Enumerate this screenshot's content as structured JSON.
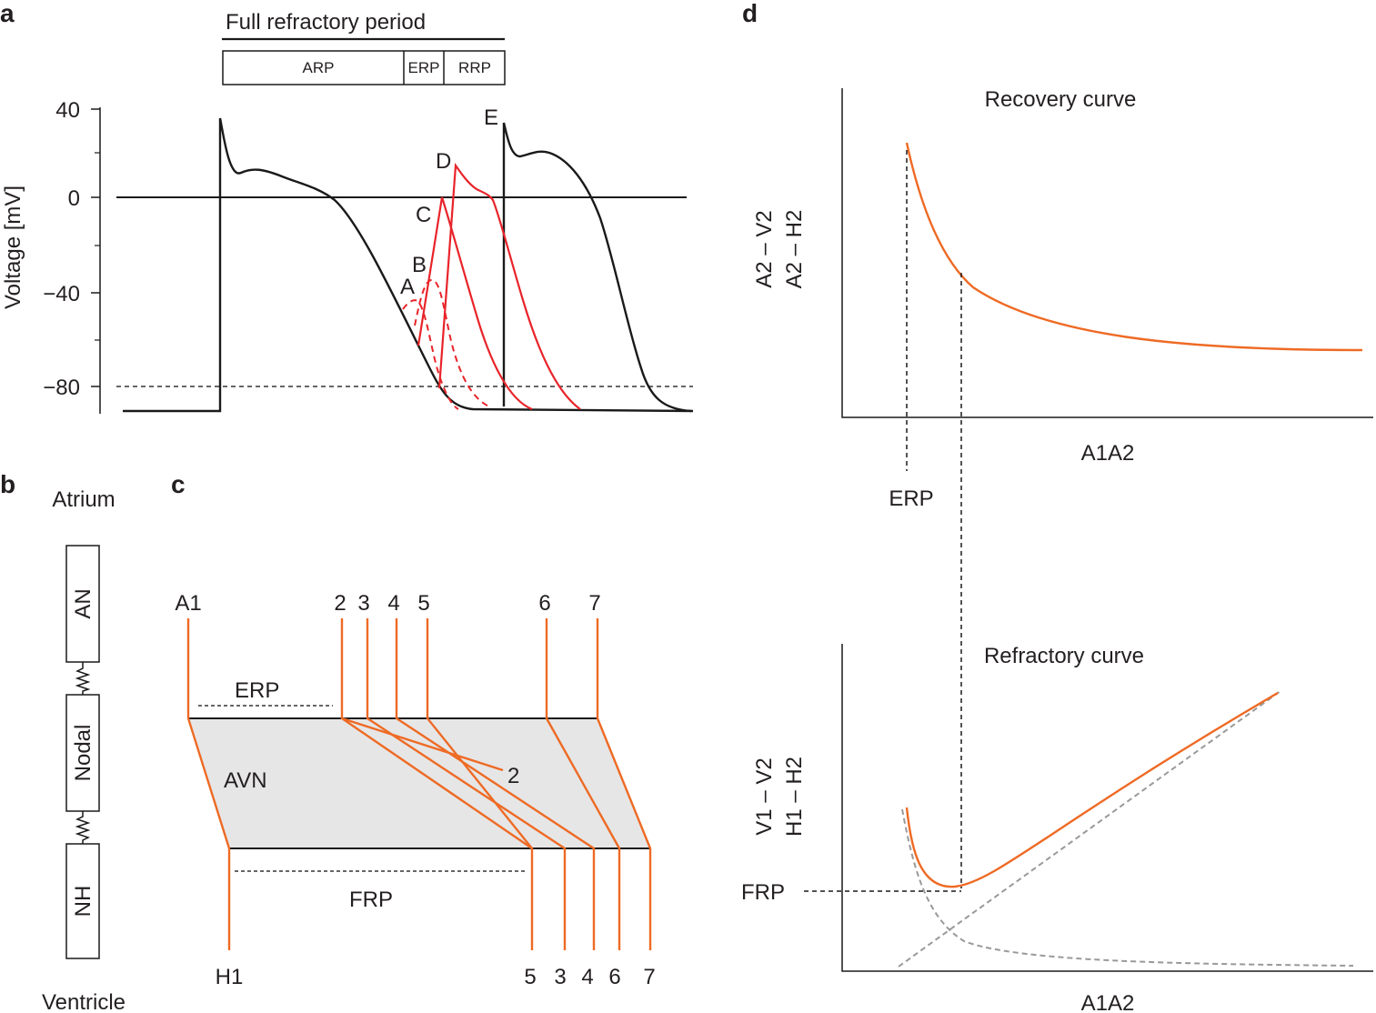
{
  "colors": {
    "black": "#1a1a1a",
    "red": "#e8242a",
    "orange": "#ee6a24",
    "gray_dash": "#999999",
    "avn_fill": "#e6e6e6"
  },
  "panel_a": {
    "letter": "a",
    "period_title": "Full refractory period",
    "boxes": [
      "ARP",
      "ERP",
      "RRP"
    ],
    "ylabel": "Voltage [mV]",
    "yticks": [
      "40",
      "0",
      "−40",
      "−80"
    ],
    "curve_labels": [
      "A",
      "B",
      "C",
      "D",
      "E"
    ]
  },
  "panel_b": {
    "letter": "b",
    "top_label": "Atrium",
    "bottom_label": "Ventricle",
    "blocks": [
      "AN",
      "Nodal",
      "NH"
    ]
  },
  "panel_c": {
    "letter": "c",
    "top_labels": [
      "A1",
      "2",
      "3",
      "4",
      "5",
      "6",
      "7"
    ],
    "erp_label": "ERP",
    "avn_label": "AVN",
    "blocked_label": "2",
    "frp_label": "FRP",
    "bottom_labels": [
      "H1",
      "5",
      "3",
      "4",
      "6",
      "7"
    ]
  },
  "panel_d": {
    "letter": "d",
    "recovery_title": "Recovery curve",
    "recovery_ylabel_1": "A2 – V2",
    "recovery_ylabel_2": "A2 – H2",
    "recovery_xlabel": "A1A2",
    "erp_label": "ERP",
    "refractory_title": "Refractory curve",
    "refractory_ylabel_1": "V1 – V2",
    "refractory_ylabel_2": "H1 – H2",
    "frp_label": "FRP",
    "refractory_xlabel": "A1A2"
  }
}
